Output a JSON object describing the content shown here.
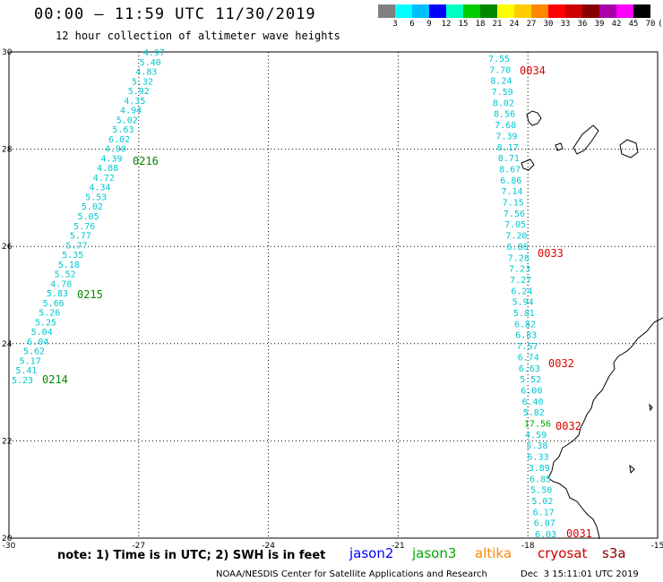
{
  "header": {
    "title": "00:00 — 11:59 UTC 11/30/2019",
    "subtitle": "12 hour collection of altimeter wave heights"
  },
  "colorbar": {
    "colors": [
      "#808080",
      "#00ffff",
      "#00bfff",
      "#0000ff",
      "#00ffc0",
      "#00cc00",
      "#008800",
      "#ffff00",
      "#ffcc00",
      "#ff8800",
      "#ff0000",
      "#cc0000",
      "#880000",
      "#aa00aa",
      "#ff00ff",
      "#000000"
    ],
    "ticks": [
      "3",
      "6",
      "9",
      "12",
      "15",
      "18",
      "21",
      "24",
      "27",
      "30",
      "33",
      "36",
      "39",
      "42",
      "45",
      "70",
      "(ft)"
    ]
  },
  "map": {
    "lon_range": [
      -30,
      -15
    ],
    "lat_range": [
      20,
      30
    ],
    "x_ticks": [
      "-30",
      "-27",
      "-24",
      "-21",
      "-18",
      "-15"
    ],
    "y_ticks": [
      "30",
      "28",
      "26",
      "24",
      "22",
      "20"
    ],
    "grid": true,
    "left_track_labels": [
      "4.97",
      "5.40",
      "4.83",
      "5.32",
      "5.92",
      "4.35",
      "4.94",
      "5.02",
      "5.63",
      "6.02",
      "4.90",
      "4.39",
      "4.88",
      "4.72",
      "4.34",
      "5.53",
      "5.02",
      "5.05",
      "5.76",
      "5.77",
      "5.77",
      "5.35",
      "5.18",
      "5.52",
      "4.78",
      "5.83",
      "5.66",
      "5.26",
      "5.25",
      "5.04",
      "6.04",
      "5.62",
      "5.17",
      "5.41",
      "5.23"
    ],
    "left_time_labels": [
      "0216",
      "0215",
      "0214"
    ],
    "right_track_labels": [
      "7.55",
      "7.70",
      "8.24",
      "7.59",
      "8.02",
      "8.56",
      "7.68",
      "7.39",
      "8.17",
      "8.71",
      "8.67",
      "6.86",
      "7.14",
      "7.15",
      "7.56",
      "7.05",
      "7.20",
      "6.86",
      "7.28",
      "7.23",
      "7.27",
      "6.24",
      "5.94",
      "5.81",
      "6.82",
      "6.83",
      "7.57",
      "6.74",
      "6.63",
      "5.52",
      "6.00",
      "6.40",
      "5.82",
      "17.56",
      "4.59",
      "5.38",
      "6.33",
      "3.89",
      "6.85",
      "5.50",
      "5.02",
      "6.17",
      "6.07",
      "6.03"
    ],
    "right_time_labels": [
      "0034",
      "0033",
      "0032",
      "0032",
      "0031"
    ]
  },
  "footer": {
    "note": "note: 1) Time is in UTC; 2) SWH is in feet",
    "satellites": [
      "jason2",
      "jason3",
      "altika",
      "cryosat",
      "s3a"
    ],
    "credit": "NOAA/NESDIS Center for Satellite Applications and Research",
    "generated": "Dec  3 15:11:01 UTC 2019"
  },
  "colors": {
    "track": "#00c8d0",
    "left_time": "#008800",
    "right_time": "#dd0000",
    "outlier": "#00aa00",
    "jason2": "#0000ff",
    "jason3": "#00aa00",
    "altika": "#ff8800",
    "cryosat": "#cc0000",
    "s3a": "#880000"
  }
}
